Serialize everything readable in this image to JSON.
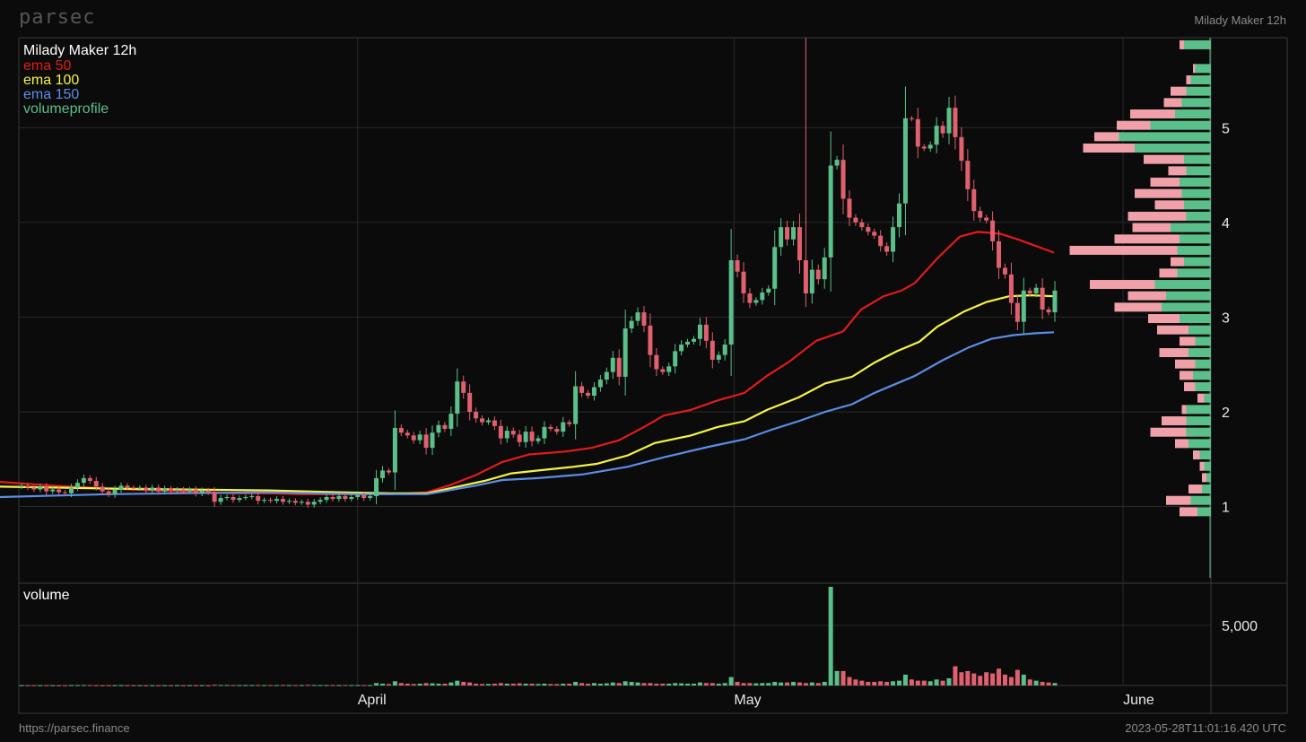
{
  "header": {
    "brand": "parsec",
    "chart_name": "Milady Maker 12h"
  },
  "footer": {
    "url": "https://parsec.finance",
    "timestamp": "2023-05-28T11:01:16.420 UTC"
  },
  "colors": {
    "up": "#5bbf8a",
    "down": "#e0606e",
    "ema50": "#e31a1a",
    "ema100": "#f5f542",
    "ema150": "#5b8ee6",
    "vp_up": "#5bbf8a",
    "vp_down": "#f0a0a8"
  },
  "chart_data": [
    {
      "type": "candlestick",
      "title": "Milady Maker 12h",
      "legend": [
        {
          "name": "ema 50",
          "color": "#e31a1a"
        },
        {
          "name": "ema 100",
          "color": "#f5f542"
        },
        {
          "name": "ema 150",
          "color": "#5b8ee6"
        },
        {
          "name": "volumeprofile",
          "color": "#5bbf8a"
        }
      ],
      "legend_position": "top-left",
      "x_range": [
        "2023-03-05",
        "2023-06-08"
      ],
      "x_ticks": [
        {
          "date": "2023-04-01",
          "label": "April"
        },
        {
          "date": "2023-05-01",
          "label": "May"
        },
        {
          "date": "2023-06-01",
          "label": "June"
        }
      ],
      "y_range": [
        0.2,
        5.95
      ],
      "y_ticks": [
        1,
        2,
        3,
        4,
        5
      ],
      "grid": true,
      "closes": [
        1.22,
        1.2,
        1.18,
        1.21,
        1.16,
        1.18,
        1.15,
        1.14,
        1.2,
        1.25,
        1.3,
        1.27,
        1.21,
        1.16,
        1.13,
        1.18,
        1.22,
        1.2,
        1.19,
        1.2,
        1.17,
        1.2,
        1.16,
        1.19,
        1.17,
        1.18,
        1.16,
        1.18,
        1.14,
        1.17,
        1.15,
        1.05,
        1.09,
        1.1,
        1.07,
        1.09,
        1.1,
        1.11,
        1.06,
        1.07,
        1.06,
        1.08,
        1.05,
        1.06,
        1.04,
        1.05,
        1.02,
        1.05,
        1.07,
        1.1,
        1.08,
        1.11,
        1.08,
        1.1,
        1.12,
        1.09,
        1.11,
        1.3,
        1.38,
        1.36,
        1.83,
        1.78,
        1.75,
        1.7,
        1.76,
        1.62,
        1.78,
        1.86,
        1.82,
        1.98,
        2.32,
        2.2,
        2.0,
        1.93,
        1.89,
        1.91,
        1.85,
        1.72,
        1.8,
        1.76,
        1.68,
        1.79,
        1.69,
        1.72,
        1.84,
        1.82,
        1.79,
        1.89,
        1.87,
        2.27,
        2.2,
        2.17,
        2.26,
        2.34,
        2.42,
        2.57,
        2.37,
        2.88,
        2.96,
        3.05,
        2.91,
        2.6,
        2.45,
        2.42,
        2.48,
        2.64,
        2.71,
        2.74,
        2.77,
        2.92,
        2.75,
        2.55,
        2.6,
        2.71,
        3.6,
        3.48,
        3.25,
        3.15,
        3.18,
        3.26,
        3.3,
        3.74,
        3.95,
        3.82,
        3.95,
        3.6,
        3.25,
        3.5,
        3.4,
        3.63,
        4.6,
        4.66,
        4.25,
        4.05,
        4.0,
        3.95,
        3.9,
        3.86,
        3.75,
        3.69,
        3.95,
        4.2,
        5.1,
        5.09,
        4.8,
        4.78,
        4.82,
        5.02,
        4.94,
        5.21,
        4.9,
        4.65,
        4.35,
        4.12,
        4.05,
        4.02,
        3.8,
        3.52,
        3.45,
        3.15,
        2.95,
        3.28,
        3.25,
        3.31,
        3.08,
        3.05,
        3.28
      ],
      "ema_50": [
        [
          0,
          1.26
        ],
        [
          60,
          1.22
        ],
        [
          120,
          1.19
        ],
        [
          200,
          1.16
        ],
        [
          260,
          1.14
        ],
        [
          300,
          1.14
        ],
        [
          336,
          1.13
        ],
        [
          372,
          1.13
        ],
        [
          410,
          1.13
        ],
        [
          436,
          1.13
        ],
        [
          476,
          1.15
        ],
        [
          500,
          1.22
        ],
        [
          530,
          1.33
        ],
        [
          560,
          1.47
        ],
        [
          590,
          1.55
        ],
        [
          630,
          1.58
        ],
        [
          660,
          1.62
        ],
        [
          690,
          1.7
        ],
        [
          720,
          1.85
        ],
        [
          740,
          1.96
        ],
        [
          770,
          2.02
        ],
        [
          800,
          2.12
        ],
        [
          830,
          2.2
        ],
        [
          855,
          2.38
        ],
        [
          880,
          2.53
        ],
        [
          910,
          2.75
        ],
        [
          940,
          2.85
        ],
        [
          960,
          3.08
        ],
        [
          985,
          3.22
        ],
        [
          1005,
          3.28
        ],
        [
          1020,
          3.36
        ],
        [
          1045,
          3.62
        ],
        [
          1070,
          3.85
        ],
        [
          1090,
          3.9
        ],
        [
          1115,
          3.88
        ],
        [
          1135,
          3.82
        ],
        [
          1155,
          3.75
        ],
        [
          1175,
          3.68
        ]
      ],
      "ema_100": [
        [
          0,
          1.21
        ],
        [
          60,
          1.2
        ],
        [
          120,
          1.19
        ],
        [
          200,
          1.18
        ],
        [
          300,
          1.17
        ],
        [
          380,
          1.15
        ],
        [
          436,
          1.14
        ],
        [
          476,
          1.14
        ],
        [
          510,
          1.21
        ],
        [
          540,
          1.27
        ],
        [
          570,
          1.35
        ],
        [
          600,
          1.38
        ],
        [
          640,
          1.42
        ],
        [
          665,
          1.45
        ],
        [
          700,
          1.54
        ],
        [
          730,
          1.67
        ],
        [
          770,
          1.75
        ],
        [
          800,
          1.84
        ],
        [
          830,
          1.9
        ],
        [
          855,
          2.02
        ],
        [
          890,
          2.15
        ],
        [
          920,
          2.3
        ],
        [
          950,
          2.37
        ],
        [
          975,
          2.52
        ],
        [
          1000,
          2.64
        ],
        [
          1025,
          2.74
        ],
        [
          1045,
          2.9
        ],
        [
          1075,
          3.06
        ],
        [
          1100,
          3.16
        ],
        [
          1125,
          3.22
        ],
        [
          1150,
          3.23
        ],
        [
          1175,
          3.22
        ]
      ],
      "ema_150": [
        [
          0,
          1.1
        ],
        [
          120,
          1.13
        ],
        [
          200,
          1.14
        ],
        [
          300,
          1.15
        ],
        [
          400,
          1.13
        ],
        [
          476,
          1.13
        ],
        [
          530,
          1.22
        ],
        [
          560,
          1.28
        ],
        [
          600,
          1.3
        ],
        [
          650,
          1.34
        ],
        [
          700,
          1.42
        ],
        [
          740,
          1.52
        ],
        [
          790,
          1.63
        ],
        [
          830,
          1.71
        ],
        [
          860,
          1.81
        ],
        [
          890,
          1.9
        ],
        [
          920,
          2.0
        ],
        [
          950,
          2.08
        ],
        [
          975,
          2.2
        ],
        [
          1000,
          2.3
        ],
        [
          1020,
          2.38
        ],
        [
          1050,
          2.54
        ],
        [
          1080,
          2.68
        ],
        [
          1105,
          2.77
        ],
        [
          1130,
          2.81
        ],
        [
          1155,
          2.83
        ],
        [
          1175,
          2.84
        ]
      ],
      "volume_profile": [
        {
          "price": 5.87,
          "up": 0.12,
          "down": 0.02
        },
        {
          "price": 5.62,
          "up": 0.07,
          "down": 0.01
        },
        {
          "price": 5.5,
          "up": 0.09,
          "down": 0.02
        },
        {
          "price": 5.38,
          "up": 0.11,
          "down": 0.07
        },
        {
          "price": 5.26,
          "up": 0.13,
          "down": 0.08
        },
        {
          "price": 5.14,
          "up": 0.16,
          "down": 0.2
        },
        {
          "price": 5.02,
          "up": 0.27,
          "down": 0.15
        },
        {
          "price": 4.9,
          "up": 0.41,
          "down": 0.11
        },
        {
          "price": 4.78,
          "up": 0.34,
          "down": 0.23
        },
        {
          "price": 4.66,
          "up": 0.12,
          "down": 0.18
        },
        {
          "price": 4.54,
          "up": 0.11,
          "down": 0.08
        },
        {
          "price": 4.42,
          "up": 0.14,
          "down": 0.13
        },
        {
          "price": 4.3,
          "up": 0.13,
          "down": 0.21
        },
        {
          "price": 4.18,
          "up": 0.12,
          "down": 0.13
        },
        {
          "price": 4.06,
          "up": 0.11,
          "down": 0.26
        },
        {
          "price": 3.94,
          "up": 0.18,
          "down": 0.17
        },
        {
          "price": 3.82,
          "up": 0.14,
          "down": 0.29
        },
        {
          "price": 3.7,
          "up": 0.15,
          "down": 0.48
        },
        {
          "price": 3.58,
          "up": 0.12,
          "down": 0.06
        },
        {
          "price": 3.46,
          "up": 0.15,
          "down": 0.08
        },
        {
          "price": 3.34,
          "up": 0.25,
          "down": 0.29
        },
        {
          "price": 3.22,
          "up": 0.2,
          "down": 0.17
        },
        {
          "price": 3.1,
          "up": 0.22,
          "down": 0.21
        },
        {
          "price": 2.98,
          "up": 0.14,
          "down": 0.14
        },
        {
          "price": 2.86,
          "up": 0.1,
          "down": 0.14
        },
        {
          "price": 2.74,
          "up": 0.07,
          "down": 0.07
        },
        {
          "price": 2.62,
          "up": 0.1,
          "down": 0.13
        },
        {
          "price": 2.5,
          "up": 0.07,
          "down": 0.09
        },
        {
          "price": 2.38,
          "up": 0.08,
          "down": 0.06
        },
        {
          "price": 2.26,
          "up": 0.07,
          "down": 0.05
        },
        {
          "price": 2.14,
          "up": 0.03,
          "down": 0.03
        },
        {
          "price": 2.02,
          "up": 0.11,
          "down": 0.02
        },
        {
          "price": 1.9,
          "up": 0.11,
          "down": 0.11
        },
        {
          "price": 1.78,
          "up": 0.11,
          "down": 0.16
        },
        {
          "price": 1.66,
          "up": 0.1,
          "down": 0.06
        },
        {
          "price": 1.54,
          "up": 0.05,
          "down": 0.03
        },
        {
          "price": 1.42,
          "up": 0.03,
          "down": 0.02
        },
        {
          "price": 1.3,
          "up": 0.02,
          "down": 0.02
        },
        {
          "price": 1.18,
          "up": 0.04,
          "down": 0.06
        },
        {
          "price": 1.06,
          "up": 0.09,
          "down": 0.11
        },
        {
          "price": 0.94,
          "up": 0.06,
          "down": 0.08
        }
      ]
    },
    {
      "type": "bar",
      "title": "volume",
      "y_ticks": [
        5000
      ],
      "y_tick_labels": [
        "5,000"
      ],
      "y_range": [
        0,
        8500
      ],
      "volumes": [
        20,
        15,
        20,
        15,
        20,
        20,
        15,
        20,
        25,
        30,
        40,
        30,
        20,
        15,
        15,
        20,
        25,
        20,
        20,
        20,
        15,
        20,
        15,
        20,
        15,
        20,
        15,
        20,
        15,
        20,
        15,
        60,
        40,
        40,
        30,
        30,
        30,
        30,
        40,
        30,
        30,
        30,
        40,
        30,
        30,
        30,
        50,
        40,
        30,
        30,
        30,
        30,
        30,
        30,
        30,
        30,
        30,
        200,
        150,
        120,
        350,
        200,
        150,
        120,
        150,
        200,
        180,
        150,
        150,
        250,
        400,
        300,
        250,
        150,
        120,
        120,
        150,
        200,
        150,
        150,
        180,
        150,
        150,
        120,
        150,
        120,
        120,
        150,
        150,
        300,
        200,
        150,
        200,
        150,
        180,
        250,
        200,
        350,
        300,
        250,
        200,
        200,
        150,
        150,
        150,
        200,
        180,
        150,
        150,
        250,
        200,
        200,
        150,
        200,
        700,
        300,
        200,
        200,
        180,
        200,
        200,
        300,
        250,
        250,
        300,
        250,
        200,
        250,
        200,
        300,
        8200,
        1200,
        1200,
        700,
        500,
        400,
        300,
        300,
        350,
        300,
        350,
        400,
        900,
        500,
        400,
        400,
        350,
        500,
        400,
        600,
        1600,
        1100,
        1200,
        1000,
        800,
        1100,
        1000,
        1400,
        900,
        700,
        1300,
        900,
        500,
        400,
        300,
        250,
        200
      ]
    }
  ]
}
